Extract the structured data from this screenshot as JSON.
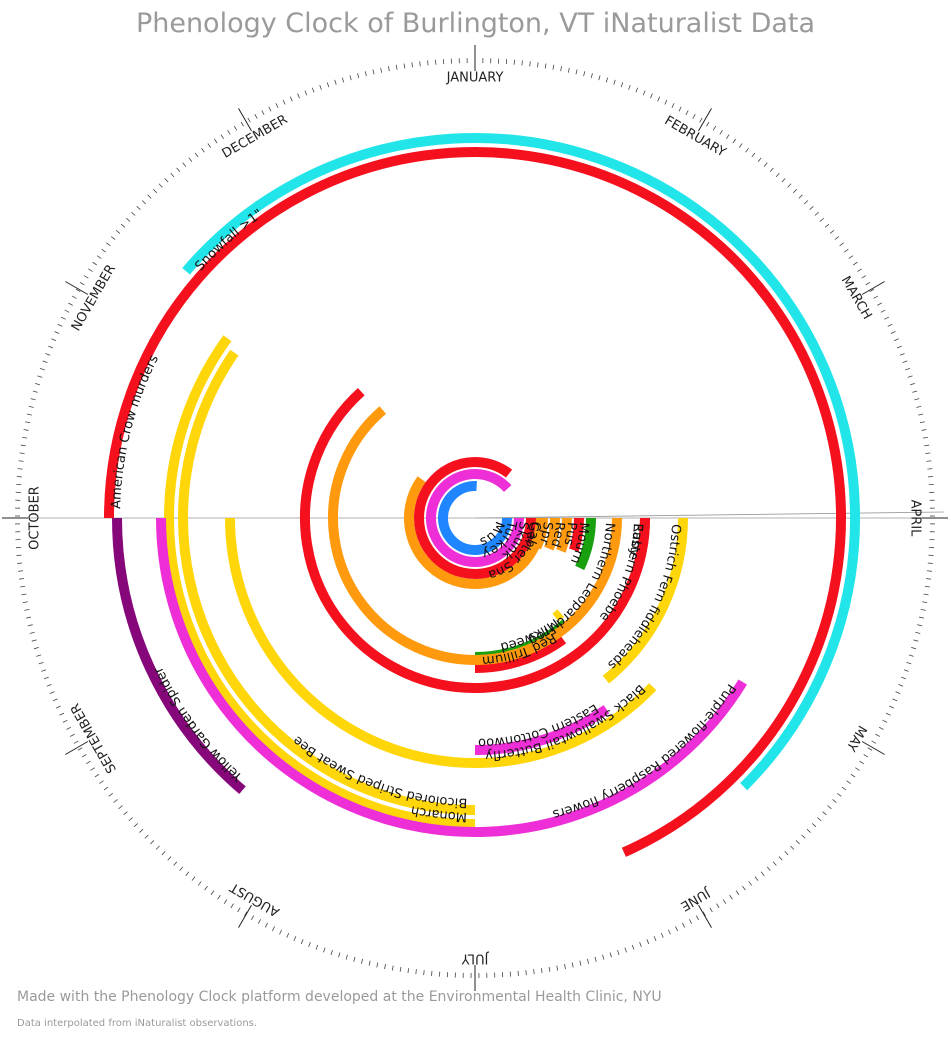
{
  "title": "Phenology Clock of Burlington, VT iNaturalist Data",
  "footer": {
    "credit": "Made with the Phenology Clock platform developed at the Environmental Health Clinic, NYU",
    "note": "Data interpolated from iNaturalist observations."
  },
  "chart_data": {
    "type": "radial-arc",
    "title": "Phenology Clock of Burlington, VT iNaturalist Data",
    "months": [
      "JANUARY",
      "FEBRUARY",
      "MARCH",
      "APRIL",
      "MAY",
      "JUNE",
      "JULY",
      "AUGUST",
      "SEPTEMBER",
      "OCTOBER",
      "NOVEMBER",
      "DECEMBER"
    ],
    "colors": {
      "cyan": "#22e5ea",
      "red": "#f5101e",
      "orange": "#ff9a0e",
      "magenta": "#ee2ed6",
      "yellow": "#ffd60a",
      "green": "#18a00f",
      "blue": "#1f86ff",
      "purple": "#86077a"
    },
    "series": [
      {
        "name": "Snowfall >1\"",
        "color": "cyan",
        "start_month": 10.35,
        "end_month": 4.5
      },
      {
        "name": "American Crow murders",
        "color": "red",
        "start_month": 9.0,
        "end_month": 5.2
      },
      {
        "name": "Yellow Garden Spider",
        "color": "purple",
        "start_month": 7.35,
        "end_month": 9.0
      },
      {
        "name": "Monarch",
        "color": "yellow",
        "start_month": 6.0,
        "end_month": 10.2
      },
      {
        "name": "Bicolored Striped Sweat Bee",
        "color": "yellow",
        "start_month": 6.0,
        "end_month": 10.15
      },
      {
        "name": "Purple-flowered Raspberry flowers",
        "color": "magenta",
        "start_month": 4.05,
        "end_month": 9.0
      },
      {
        "name": "Red Trillium flowers",
        "color": "red",
        "start_month": 4.8,
        "end_month": 6.0
      },
      {
        "name": "Eastern Cottonwood fluff",
        "color": "magenta",
        "start_month": 4.85,
        "end_month": 6.0
      },
      {
        "name": "Milkweed",
        "color": "green",
        "start_month": 4.65,
        "end_month": 6.0
      },
      {
        "name": "Silver Maple flowers",
        "color": "yellow",
        "start_month": 4.6,
        "end_month": 4.7
      },
      {
        "name": "Ostrich Fern fiddleheads",
        "color": "yellow",
        "start_month": 3.0,
        "end_month": 4.7
      },
      {
        "name": "Black Swallowtail Butterfly",
        "color": "yellow",
        "start_month": 4.45,
        "end_month": 9.0
      },
      {
        "name": "Mourning Cloak",
        "color": "green",
        "start_month": 3.0,
        "end_month": 3.85
      },
      {
        "name": "Pussy Willow buds",
        "color": "red",
        "start_month": 3.0,
        "end_month": 3.6
      },
      {
        "name": "Ruby-crowned Kinglets",
        "color": "red",
        "start_month": 3.0,
        "end_month": 3.55
      },
      {
        "name": "Eastern Phoebe",
        "color": "red",
        "start_month": 3.0,
        "end_month": 10.6
      },
      {
        "name": "Northern Leopard Frog",
        "color": "orange",
        "start_month": 3.0,
        "end_month": 10.65
      },
      {
        "name": "Red-winged Blackbird",
        "color": "orange",
        "start_month": 3.0,
        "end_month": 3.7
      },
      {
        "name": "Spring Peeper",
        "color": "orange",
        "start_month": 3.0,
        "end_month": 3.75
      },
      {
        "name": "Cabbage Loopers",
        "color": "orange",
        "start_month": 3.0,
        "end_month": 3.85
      },
      {
        "name": "Garter Snake",
        "color": "orange",
        "start_month": 3.0,
        "end_month": 10.2
      },
      {
        "name": "Skunk",
        "color": "red",
        "start_month": 3.0,
        "end_month": 1.25
      },
      {
        "name": "Turkey Vulture",
        "color": "magenta",
        "start_month": 3.0,
        "end_month": 1.6
      },
      {
        "name": "Muskrat",
        "color": "blue",
        "start_month": 3.0,
        "end_month": 0.1
      }
    ]
  }
}
